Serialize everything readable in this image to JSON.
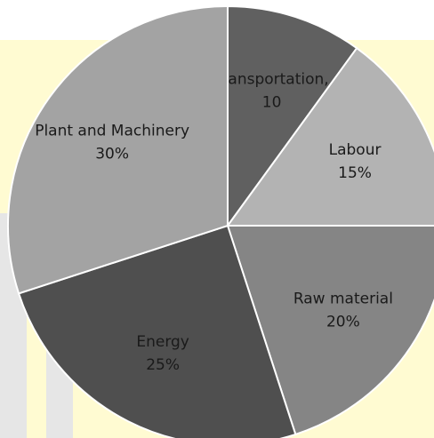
{
  "chart_data": {
    "type": "pie",
    "categories": [
      "Transportation,",
      "Labour",
      "Raw material",
      "Energy",
      "Plant and Machinery"
    ],
    "values": [
      10,
      15,
      20,
      25,
      30
    ],
    "value_labels": [
      "10",
      "15%",
      "20%",
      "25%",
      "30%"
    ],
    "colors": [
      "#606060",
      "#b3b3b3",
      "#858585",
      "#4f4f4f",
      "#a3a3a3"
    ]
  }
}
